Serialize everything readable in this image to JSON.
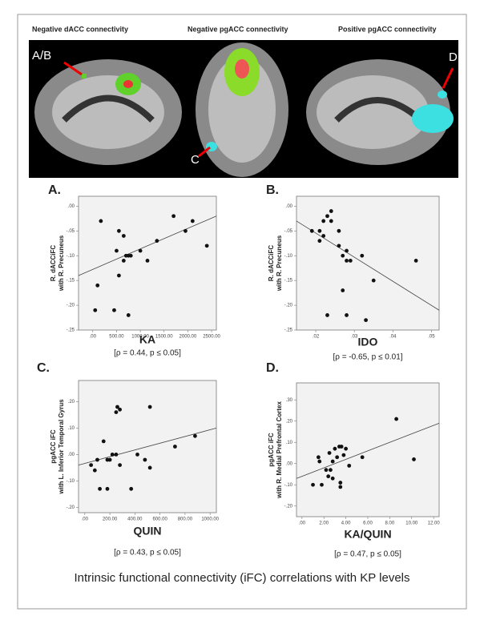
{
  "figure": {
    "brain_titles": [
      "Negative dACC connectivity",
      "Negative pgACC connectivity",
      "Positive pgACC connectivity"
    ],
    "brain_labels": [
      "A/B",
      "C",
      "D"
    ],
    "caption": "Intrinsic functional connectivity (iFC) correlations with KP levels"
  },
  "chart_data": [
    {
      "type": "scatter",
      "panel": "A.",
      "ylabel": [
        "R. dACCiFC",
        "with R. Precuneus"
      ],
      "xlabel": "KA",
      "annotation": "[ρ = 0.44, p ≤ 0.05]",
      "x": [
        170,
        100,
        50,
        450,
        550,
        500,
        550,
        650,
        700,
        650,
        750,
        800,
        750,
        1000,
        1150,
        1350,
        1700,
        1950,
        2100,
        2400
      ],
      "y": [
        -0.03,
        -0.16,
        -0.21,
        -0.21,
        -0.14,
        -0.09,
        -0.05,
        -0.06,
        -0.1,
        -0.11,
        -0.1,
        -0.1,
        -0.22,
        -0.09,
        -0.11,
        -0.07,
        -0.02,
        -0.05,
        -0.03,
        -0.08
      ],
      "color": "#111111",
      "trendline": {
        "x": [
          -300,
          2600
        ],
        "y": [
          -0.14,
          -0.02
        ]
      },
      "xlim": [
        -300,
        2600
      ],
      "ylim": [
        -0.25,
        0.02
      ],
      "xticks": [
        {
          "value": 0,
          "label": ".00"
        },
        {
          "value": 500,
          "label": "500.00"
        },
        {
          "value": 1000,
          "label": "1000.00"
        },
        {
          "value": 1500,
          "label": "1500.00"
        },
        {
          "value": 2000,
          "label": "2000.00"
        },
        {
          "value": 2500,
          "label": "2500.00"
        }
      ],
      "yticks": [
        {
          "value": 0,
          "label": ".00"
        },
        {
          "value": -0.05,
          "label": "-.05"
        },
        {
          "value": -0.1,
          "label": "-.10"
        },
        {
          "value": -0.15,
          "label": "-.15"
        },
        {
          "value": -0.2,
          "label": "-.20"
        },
        {
          "value": -0.25,
          "label": "-.25"
        }
      ]
    },
    {
      "type": "scatter",
      "panel": "B.",
      "ylabel": [
        "R. dACCiFC",
        "with R. Precuneus"
      ],
      "xlabel": "IDO",
      "annotation": "[ρ = -0.65, p ≤ 0.01]",
      "x": [
        0.019,
        0.021,
        0.021,
        0.022,
        0.022,
        0.023,
        0.024,
        0.024,
        0.026,
        0.026,
        0.027,
        0.028,
        0.028,
        0.029,
        0.027,
        0.028,
        0.023,
        0.032,
        0.035,
        0.033,
        0.046
      ],
      "y": [
        -0.05,
        -0.05,
        -0.07,
        -0.06,
        -0.03,
        -0.02,
        -0.01,
        -0.03,
        -0.05,
        -0.08,
        -0.1,
        -0.09,
        -0.11,
        -0.11,
        -0.17,
        -0.22,
        -0.22,
        -0.1,
        -0.15,
        -0.23,
        -0.11
      ],
      "color": "#111111",
      "trendline": {
        "x": [
          0.015,
          0.052
        ],
        "y": [
          -0.03,
          -0.21
        ]
      },
      "xlim": [
        0.015,
        0.052
      ],
      "ylim": [
        -0.25,
        0.02
      ],
      "xticks": [
        {
          "value": 0.02,
          "label": ".02"
        },
        {
          "value": 0.03,
          "label": ".03"
        },
        {
          "value": 0.04,
          "label": ".04"
        },
        {
          "value": 0.05,
          "label": ".05"
        }
      ],
      "yticks": [
        {
          "value": 0,
          "label": ".00"
        },
        {
          "value": -0.05,
          "label": "-.05"
        },
        {
          "value": -0.1,
          "label": "-.10"
        },
        {
          "value": -0.15,
          "label": "-.15"
        },
        {
          "value": -0.2,
          "label": "-.20"
        },
        {
          "value": -0.25,
          "label": "-.25"
        }
      ]
    },
    {
      "type": "scatter",
      "panel": "C.",
      "ylabel": [
        "pgACC iFC",
        "with L. Inferior Temporal Gyrus"
      ],
      "xlabel": "QUIN",
      "annotation": "[ρ = 0.43, p ≤ 0.05]",
      "x": [
        50,
        80,
        100,
        120,
        150,
        180,
        200,
        220,
        250,
        250,
        260,
        280,
        280,
        180,
        370,
        420,
        480,
        520,
        520,
        720,
        880
      ],
      "y": [
        -0.04,
        -0.06,
        -0.02,
        -0.13,
        0.05,
        -0.02,
        -0.02,
        0.0,
        0.0,
        0.16,
        0.18,
        0.17,
        -0.04,
        -0.13,
        -0.13,
        0.0,
        -0.02,
        -0.05,
        0.18,
        0.03,
        0.07
      ],
      "color": "#111111",
      "trendline": {
        "x": [
          -50,
          1050
        ],
        "y": [
          -0.04,
          0.1
        ]
      },
      "xlim": [
        -50,
        1050
      ],
      "ylim": [
        -0.22,
        0.28
      ],
      "xticks": [
        {
          "value": 0,
          "label": ".00"
        },
        {
          "value": 200,
          "label": "200.00"
        },
        {
          "value": 400,
          "label": "400.00"
        },
        {
          "value": 600,
          "label": "600.00"
        },
        {
          "value": 800,
          "label": "800.00"
        },
        {
          "value": 1000,
          "label": "1000.00"
        }
      ],
      "yticks": [
        {
          "value": 0.2,
          "label": ".20"
        },
        {
          "value": 0.1,
          "label": ".10"
        },
        {
          "value": 0,
          "label": ".00"
        },
        {
          "value": -0.1,
          "label": "-.10"
        },
        {
          "value": -0.2,
          "label": "-.20"
        }
      ]
    },
    {
      "type": "scatter",
      "panel": "D.",
      "ylabel": [
        "pgACC iFC",
        "with R. Medial Prefrontal Cortex"
      ],
      "xlabel": "KA/QUIN",
      "annotation": "[ρ = 0.47, p ≤ 0.05]",
      "x": [
        1.0,
        1.5,
        1.6,
        1.8,
        2.2,
        2.4,
        2.5,
        2.6,
        2.8,
        2.8,
        3.0,
        3.2,
        3.4,
        3.5,
        3.5,
        3.6,
        3.8,
        4.0,
        4.3,
        5.5,
        8.6,
        10.2
      ],
      "y": [
        -0.1,
        0.03,
        0.01,
        -0.1,
        -0.03,
        -0.06,
        0.05,
        -0.03,
        0.01,
        -0.07,
        0.07,
        0.03,
        0.08,
        -0.09,
        -0.11,
        0.08,
        0.04,
        0.07,
        -0.01,
        0.03,
        0.21,
        0.02
      ],
      "color": "#111111",
      "trendline": {
        "x": [
          -0.5,
          12.5
        ],
        "y": [
          -0.07,
          0.19
        ]
      },
      "xlim": [
        -0.5,
        12.5
      ],
      "ylim": [
        -0.25,
        0.38
      ],
      "xticks": [
        {
          "value": 0,
          "label": ".00"
        },
        {
          "value": 2,
          "label": "2.00"
        },
        {
          "value": 4,
          "label": "4.00"
        },
        {
          "value": 6,
          "label": "6.00"
        },
        {
          "value": 8,
          "label": "8.00"
        },
        {
          "value": 10,
          "label": "10.00"
        },
        {
          "value": 12,
          "label": "12.00"
        }
      ],
      "yticks": [
        {
          "value": 0.3,
          "label": ".30"
        },
        {
          "value": 0.2,
          "label": ".20"
        },
        {
          "value": 0.1,
          "label": ".10"
        },
        {
          "value": 0,
          "label": ".00"
        },
        {
          "value": -0.1,
          "label": "-.10"
        },
        {
          "value": -0.2,
          "label": "-.20"
        }
      ]
    }
  ]
}
